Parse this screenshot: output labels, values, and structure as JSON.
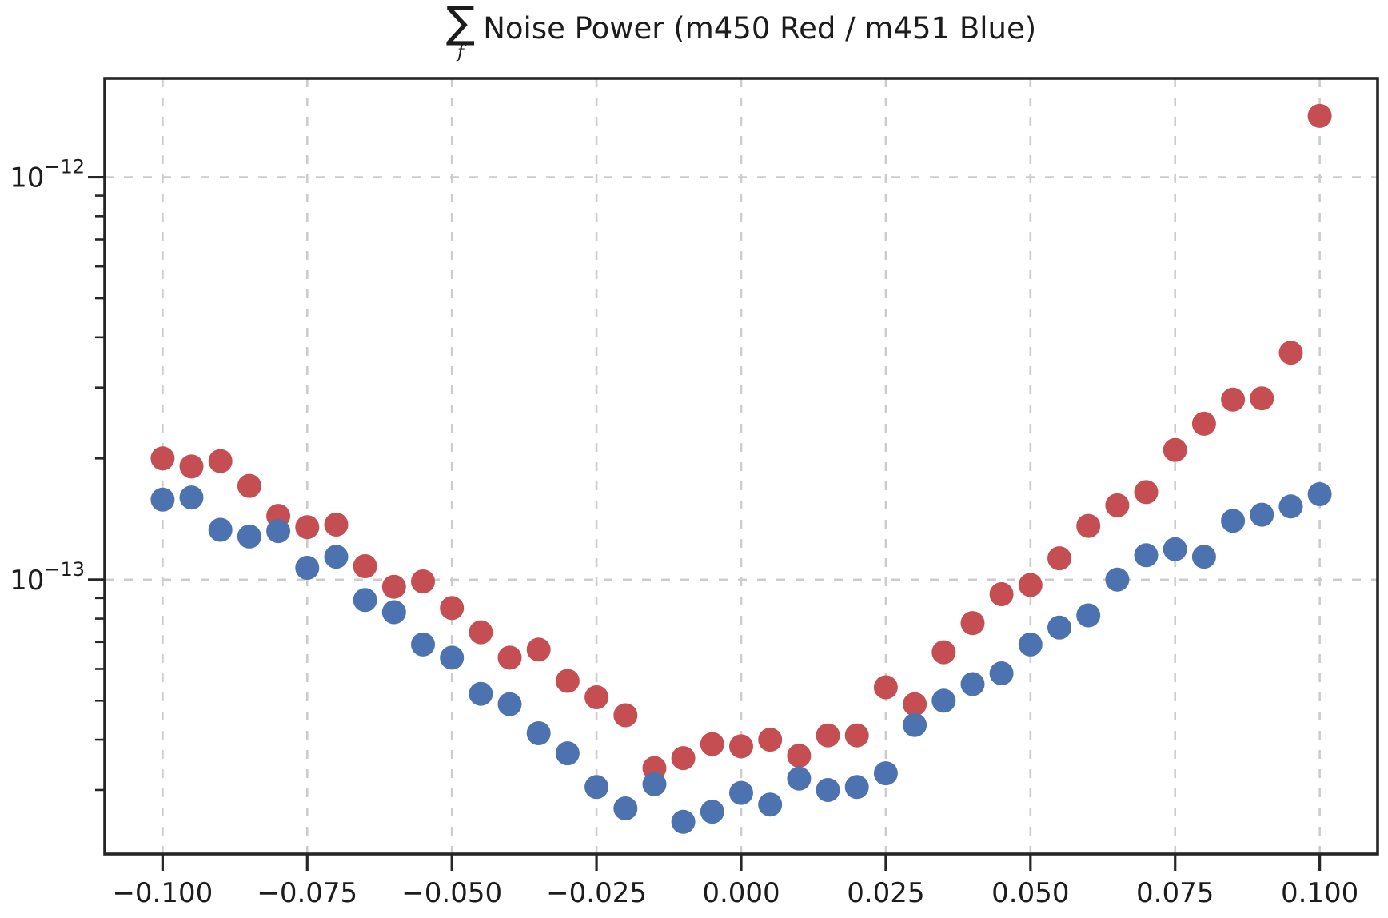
{
  "figure": {
    "title_full": "∑_f Noise Power (m450 Red / m451 Blue)"
  },
  "chart_data": {
    "type": "scatter",
    "title": "∑_f Noise Power (m450 Red / m451 Blue)",
    "title_sigma": "∑",
    "title_sub": "f",
    "title_text": "Noise Power (m450 Red / m451 Blue)",
    "xlabel": "",
    "ylabel": "",
    "legend_position": "none",
    "marker": {
      "shape": "circle",
      "radius_px": 15
    },
    "grid": {
      "show": true,
      "style": "dashed",
      "color": "#cccccc"
    },
    "x_axis": {
      "lim": [
        -0.11,
        0.11
      ],
      "ticks": [
        -0.1,
        -0.075,
        -0.05,
        -0.025,
        0.0,
        0.025,
        0.05,
        0.075,
        0.1
      ],
      "tick_labels": [
        "−0.100",
        "−0.075",
        "−0.050",
        "−0.025",
        "0.000",
        "0.025",
        "0.050",
        "0.075",
        "0.100"
      ]
    },
    "y_axis": {
      "scale": "log",
      "lim": [
        2.08e-14,
        1.76e-12
      ],
      "ticks": [
        {
          "value": 1e-12,
          "label_base": "10",
          "label_exp": "−12"
        },
        {
          "value": 1e-13,
          "label_base": "10",
          "label_exp": "−13"
        }
      ]
    },
    "x": [
      -0.1,
      -0.095,
      -0.09,
      -0.085,
      -0.08,
      -0.075,
      -0.07,
      -0.065,
      -0.06,
      -0.055,
      -0.05,
      -0.045,
      -0.04,
      -0.035,
      -0.03,
      -0.025,
      -0.02,
      -0.015,
      -0.01,
      -0.005,
      0.0,
      0.005,
      0.01,
      0.015,
      0.02,
      0.025,
      0.03,
      0.035,
      0.04,
      0.045,
      0.05,
      0.055,
      0.06,
      0.065,
      0.07,
      0.075,
      0.08,
      0.085,
      0.09,
      0.095,
      0.1
    ],
    "series": [
      {
        "name": "m450",
        "color_name": "Red",
        "color": "#c44e52",
        "values": [
          2e-13,
          1.91e-13,
          1.97e-13,
          1.71e-13,
          1.44e-13,
          1.35e-13,
          1.37e-13,
          1.08e-13,
          9.6e-14,
          9.9e-14,
          8.5e-14,
          7.4e-14,
          6.4e-14,
          6.7e-14,
          5.6e-14,
          5.1e-14,
          4.6e-14,
          3.4e-14,
          3.6e-14,
          3.9e-14,
          3.85e-14,
          4e-14,
          3.65e-14,
          4.1e-14,
          4.1e-14,
          5.4e-14,
          4.9e-14,
          6.6e-14,
          7.8e-14,
          9.2e-14,
          9.7e-14,
          1.13e-13,
          1.36e-13,
          1.53e-13,
          1.65e-13,
          2.1e-13,
          2.44e-13,
          2.8e-13,
          2.82e-13,
          3.66e-13,
          1.42e-12
        ]
      },
      {
        "name": "m451",
        "color_name": "Blue",
        "color": "#4c72b0",
        "values": [
          1.58e-13,
          1.6e-13,
          1.33e-13,
          1.28e-13,
          1.32e-13,
          1.07e-13,
          1.14e-13,
          8.9e-14,
          8.3e-14,
          6.9e-14,
          6.4e-14,
          5.2e-14,
          4.9e-14,
          4.15e-14,
          3.7e-14,
          3.05e-14,
          2.7e-14,
          3.1e-14,
          2.5e-14,
          2.65e-14,
          2.95e-14,
          2.76e-14,
          3.2e-14,
          3e-14,
          3.05e-14,
          3.3e-14,
          4.35e-14,
          5e-14,
          5.5e-14,
          5.85e-14,
          6.9e-14,
          7.6e-14,
          8.15e-14,
          1e-13,
          1.15e-13,
          1.19e-13,
          1.14e-13,
          1.4e-13,
          1.45e-13,
          1.52e-13,
          1.63e-13
        ]
      }
    ]
  },
  "colors": {
    "background": "#ffffff",
    "spine": "#262626",
    "tick_label": "#1c1c1c",
    "grid": "#cccccc",
    "series_red": "#c44e52",
    "series_blue": "#4c72b0"
  }
}
